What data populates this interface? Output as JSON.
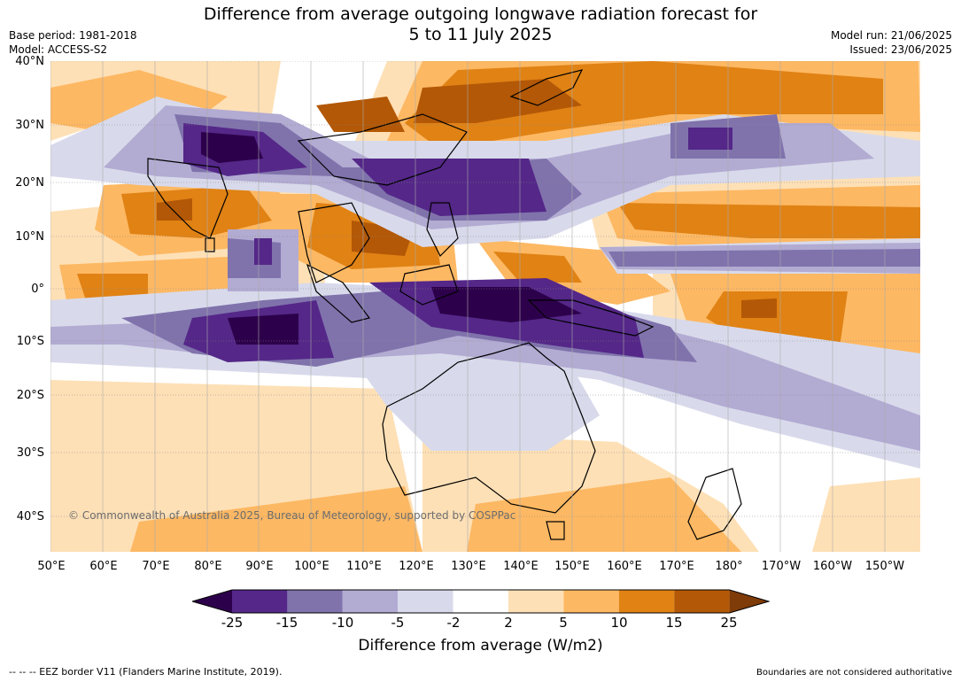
{
  "header": {
    "title_line1": "Difference from average outgoing longwave radiation forecast for",
    "title_line2": "5 to 11 July 2025",
    "base_period": "Base period: 1981-2018",
    "model": "Model: ACCESS-S2",
    "model_run": "Model run: 21/06/2025",
    "issued": "Issued: 23/06/2025"
  },
  "map": {
    "lat_labels": [
      "40°N",
      "30°N",
      "20°N",
      "10°N",
      "0°",
      "10°S",
      "20°S",
      "30°S",
      "40°S"
    ],
    "lon_labels": [
      "50°E",
      "60°E",
      "70°E",
      "80°E",
      "90°E",
      "100°E",
      "110°E",
      "120°E",
      "130°E",
      "140°E",
      "150°E",
      "160°E",
      "170°E",
      "180°",
      "170°W",
      "160°W",
      "150°W"
    ],
    "copyright": "© Commonwealth of Australia 2025, Bureau of Meteorology, supported by COSPPac"
  },
  "colorbar": {
    "ticks": [
      "-25",
      "-15",
      "-10",
      "-5",
      "-2",
      "2",
      "5",
      "10",
      "15",
      "25"
    ],
    "label": "Difference from average (W/m2)",
    "colors": {
      "below_min": "#2d004b",
      "neg25_neg15": "#542788",
      "neg15_neg10": "#8073ac",
      "neg10_neg5": "#b2abd2",
      "neg5_neg2": "#d8daeb",
      "neg2_pos2": "#ffffff",
      "pos2_pos5": "#fee0b6",
      "pos5_pos10": "#fdb863",
      "pos10_pos15": "#e08214",
      "pos15_pos25": "#b35806",
      "above_max": "#7f3b08"
    }
  },
  "footer": {
    "eez_legend": "--  --  -- EEZ border V11 (Flanders Marine Institute, 2019).",
    "disclaimer": "Boundaries are not considered authoritative"
  }
}
